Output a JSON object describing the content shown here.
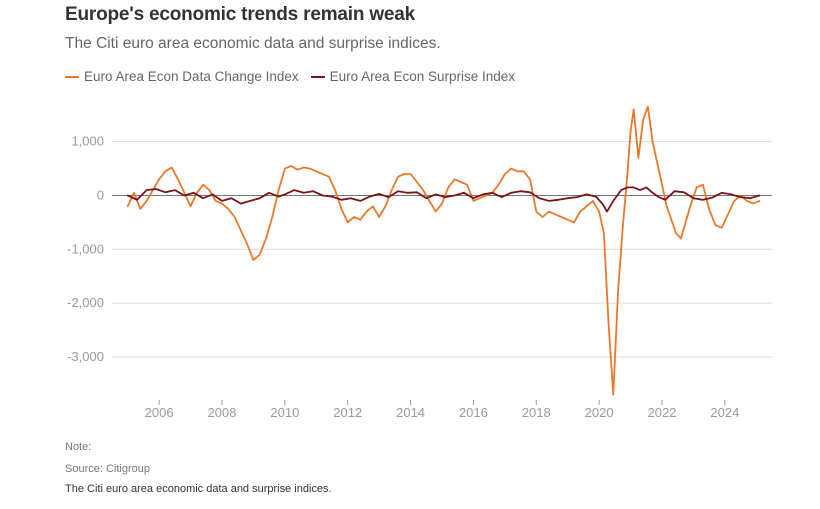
{
  "header": {
    "title": "Europe's economic trends remain weak",
    "subtitle": "The Citi euro area economic data and surprise indices."
  },
  "footer": {
    "note": "Note:",
    "source": "Source: Citigroup",
    "caption": "The Citi euro area economic data and surprise indices."
  },
  "chart_data": {
    "type": "line",
    "title": "Europe's economic trends remain weak",
    "subtitle": "The Citi euro area economic data and surprise indices.",
    "xlabel": "",
    "ylabel": "",
    "xlim": [
      2004.5,
      2025.5
    ],
    "ylim": [
      -3800,
      1700
    ],
    "x_ticks": [
      {
        "value": 2006,
        "label": "2006"
      },
      {
        "value": 2008,
        "label": "2008"
      },
      {
        "value": 2010,
        "label": "2010"
      },
      {
        "value": 2012,
        "label": "2012"
      },
      {
        "value": 2014,
        "label": "2014"
      },
      {
        "value": 2016,
        "label": "2016"
      },
      {
        "value": 2018,
        "label": "2018"
      },
      {
        "value": 2020,
        "label": "2020"
      },
      {
        "value": 2022,
        "label": "2022"
      },
      {
        "value": 2024,
        "label": "2024"
      }
    ],
    "y_ticks": [
      {
        "value": 1000,
        "label": "1,000"
      },
      {
        "value": 0,
        "label": "0"
      },
      {
        "value": -1000,
        "label": "-1,000"
      },
      {
        "value": -2000,
        "label": "-2,000"
      },
      {
        "value": -3000,
        "label": "-3,000"
      }
    ],
    "grid": true,
    "legend_position": "top-left",
    "series": [
      {
        "name": "Euro Area Econ Data Change Index",
        "color": "#e8792a",
        "points": [
          [
            2005.0,
            -200
          ],
          [
            2005.2,
            50
          ],
          [
            2005.4,
            -250
          ],
          [
            2005.6,
            -100
          ],
          [
            2005.8,
            100
          ],
          [
            2006.0,
            300
          ],
          [
            2006.2,
            450
          ],
          [
            2006.4,
            520
          ],
          [
            2006.6,
            300
          ],
          [
            2006.8,
            50
          ],
          [
            2007.0,
            -200
          ],
          [
            2007.2,
            50
          ],
          [
            2007.4,
            200
          ],
          [
            2007.6,
            100
          ],
          [
            2007.8,
            -100
          ],
          [
            2008.0,
            -150
          ],
          [
            2008.2,
            -250
          ],
          [
            2008.4,
            -400
          ],
          [
            2008.6,
            -650
          ],
          [
            2008.8,
            -900
          ],
          [
            2009.0,
            -1200
          ],
          [
            2009.2,
            -1100
          ],
          [
            2009.4,
            -800
          ],
          [
            2009.6,
            -400
          ],
          [
            2009.8,
            100
          ],
          [
            2010.0,
            500
          ],
          [
            2010.2,
            550
          ],
          [
            2010.4,
            480
          ],
          [
            2010.6,
            520
          ],
          [
            2010.8,
            500
          ],
          [
            2011.0,
            450
          ],
          [
            2011.2,
            400
          ],
          [
            2011.4,
            350
          ],
          [
            2011.6,
            100
          ],
          [
            2011.8,
            -250
          ],
          [
            2012.0,
            -500
          ],
          [
            2012.2,
            -400
          ],
          [
            2012.4,
            -450
          ],
          [
            2012.6,
            -300
          ],
          [
            2012.8,
            -200
          ],
          [
            2013.0,
            -400
          ],
          [
            2013.2,
            -200
          ],
          [
            2013.4,
            100
          ],
          [
            2013.6,
            350
          ],
          [
            2013.8,
            400
          ],
          [
            2014.0,
            400
          ],
          [
            2014.2,
            250
          ],
          [
            2014.4,
            100
          ],
          [
            2014.6,
            -100
          ],
          [
            2014.8,
            -300
          ],
          [
            2015.0,
            -150
          ],
          [
            2015.2,
            150
          ],
          [
            2015.4,
            300
          ],
          [
            2015.6,
            250
          ],
          [
            2015.8,
            200
          ],
          [
            2016.0,
            -100
          ],
          [
            2016.2,
            -50
          ],
          [
            2016.4,
            0
          ],
          [
            2016.6,
            50
          ],
          [
            2016.8,
            200
          ],
          [
            2017.0,
            400
          ],
          [
            2017.2,
            500
          ],
          [
            2017.4,
            450
          ],
          [
            2017.6,
            450
          ],
          [
            2017.8,
            300
          ],
          [
            2018.0,
            -300
          ],
          [
            2018.2,
            -400
          ],
          [
            2018.4,
            -300
          ],
          [
            2018.6,
            -350
          ],
          [
            2018.8,
            -400
          ],
          [
            2019.0,
            -450
          ],
          [
            2019.2,
            -500
          ],
          [
            2019.4,
            -300
          ],
          [
            2019.6,
            -200
          ],
          [
            2019.8,
            -100
          ],
          [
            2020.0,
            -300
          ],
          [
            2020.15,
            -700
          ],
          [
            2020.3,
            -2400
          ],
          [
            2020.45,
            -3700
          ],
          [
            2020.6,
            -1800
          ],
          [
            2020.75,
            -600
          ],
          [
            2020.9,
            400
          ],
          [
            2021.0,
            1200
          ],
          [
            2021.1,
            1600
          ],
          [
            2021.25,
            700
          ],
          [
            2021.4,
            1400
          ],
          [
            2021.55,
            1650
          ],
          [
            2021.7,
            1000
          ],
          [
            2021.85,
            600
          ],
          [
            2022.0,
            200
          ],
          [
            2022.15,
            -200
          ],
          [
            2022.3,
            -450
          ],
          [
            2022.45,
            -700
          ],
          [
            2022.6,
            -800
          ],
          [
            2022.75,
            -500
          ],
          [
            2022.9,
            -200
          ],
          [
            2023.1,
            150
          ],
          [
            2023.3,
            200
          ],
          [
            2023.5,
            -250
          ],
          [
            2023.7,
            -550
          ],
          [
            2023.9,
            -600
          ],
          [
            2024.1,
            -350
          ],
          [
            2024.3,
            -100
          ],
          [
            2024.5,
            0
          ],
          [
            2024.7,
            -100
          ],
          [
            2024.9,
            -150
          ],
          [
            2025.1,
            -100
          ]
        ]
      },
      {
        "name": "Euro Area Econ Surprise Index",
        "color": "#7a1416",
        "points": [
          [
            2005.0,
            0
          ],
          [
            2005.3,
            -80
          ],
          [
            2005.6,
            100
          ],
          [
            2005.9,
            120
          ],
          [
            2006.2,
            60
          ],
          [
            2006.5,
            100
          ],
          [
            2006.8,
            0
          ],
          [
            2007.1,
            50
          ],
          [
            2007.4,
            -50
          ],
          [
            2007.7,
            20
          ],
          [
            2008.0,
            -100
          ],
          [
            2008.3,
            -50
          ],
          [
            2008.6,
            -150
          ],
          [
            2008.9,
            -100
          ],
          [
            2009.2,
            -50
          ],
          [
            2009.5,
            50
          ],
          [
            2009.8,
            -20
          ],
          [
            2010.0,
            20
          ],
          [
            2010.3,
            100
          ],
          [
            2010.6,
            50
          ],
          [
            2010.9,
            80
          ],
          [
            2011.2,
            0
          ],
          [
            2011.5,
            -20
          ],
          [
            2011.8,
            -80
          ],
          [
            2012.1,
            -50
          ],
          [
            2012.4,
            -100
          ],
          [
            2012.7,
            -20
          ],
          [
            2013.0,
            30
          ],
          [
            2013.3,
            -30
          ],
          [
            2013.6,
            80
          ],
          [
            2013.9,
            50
          ],
          [
            2014.2,
            60
          ],
          [
            2014.5,
            -50
          ],
          [
            2014.8,
            20
          ],
          [
            2015.1,
            -30
          ],
          [
            2015.4,
            0
          ],
          [
            2015.7,
            50
          ],
          [
            2016.0,
            -50
          ],
          [
            2016.3,
            20
          ],
          [
            2016.6,
            50
          ],
          [
            2016.9,
            -30
          ],
          [
            2017.2,
            50
          ],
          [
            2017.5,
            80
          ],
          [
            2017.8,
            60
          ],
          [
            2018.1,
            -50
          ],
          [
            2018.4,
            -100
          ],
          [
            2018.7,
            -80
          ],
          [
            2019.0,
            -50
          ],
          [
            2019.3,
            -30
          ],
          [
            2019.6,
            20
          ],
          [
            2019.9,
            -20
          ],
          [
            2020.1,
            -150
          ],
          [
            2020.25,
            -300
          ],
          [
            2020.45,
            -100
          ],
          [
            2020.7,
            100
          ],
          [
            2020.9,
            150
          ],
          [
            2021.1,
            150
          ],
          [
            2021.3,
            100
          ],
          [
            2021.5,
            150
          ],
          [
            2021.7,
            50
          ],
          [
            2021.9,
            -30
          ],
          [
            2022.1,
            -80
          ],
          [
            2022.4,
            80
          ],
          [
            2022.7,
            60
          ],
          [
            2023.0,
            -50
          ],
          [
            2023.3,
            -80
          ],
          [
            2023.6,
            -40
          ],
          [
            2023.9,
            50
          ],
          [
            2024.2,
            20
          ],
          [
            2024.5,
            -30
          ],
          [
            2024.8,
            -50
          ],
          [
            2025.1,
            0
          ]
        ]
      }
    ]
  }
}
